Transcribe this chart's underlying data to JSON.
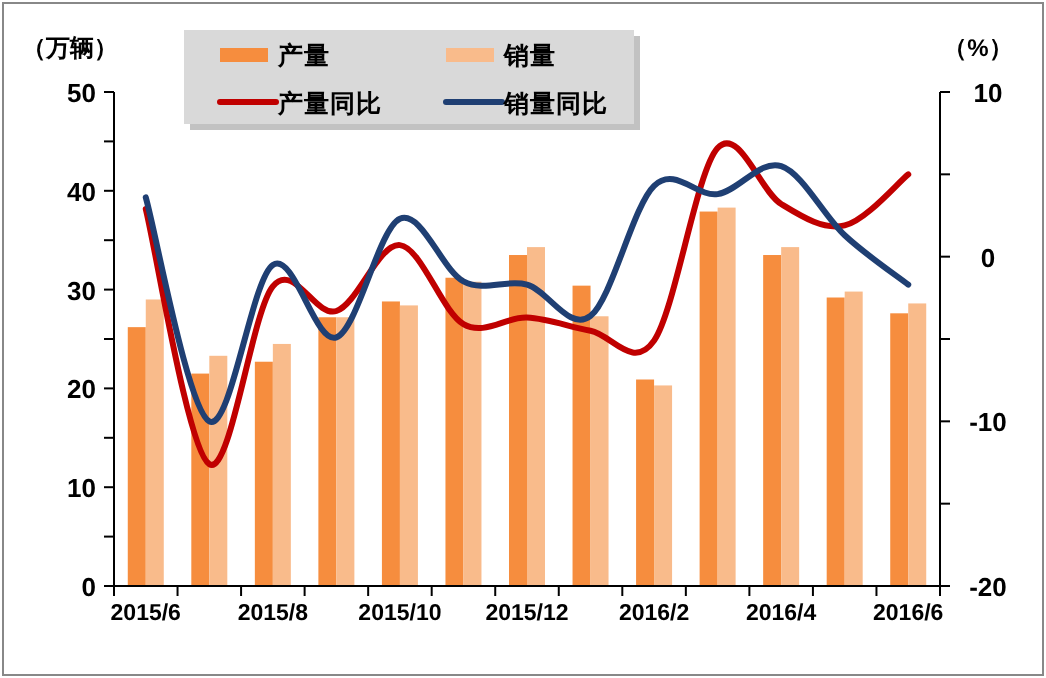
{
  "chart_data": {
    "type": "bar",
    "ylabel": "（万辆）",
    "y2label": "（%）",
    "categories": [
      "2015/6",
      null,
      "2015/8",
      null,
      "2015/10",
      null,
      "2015/12",
      null,
      "2016/2",
      null,
      "2016/4",
      null,
      "2016/6"
    ],
    "series": [
      {
        "name": "产量",
        "color": "#f68d3e",
        "values": [
          26.2,
          21.5,
          22.7,
          27.2,
          28.8,
          31.2,
          33.5,
          30.4,
          20.9,
          37.9,
          33.5,
          29.2,
          27.6
        ]
      },
      {
        "name": "销量",
        "color": "#f9bb8b",
        "values": [
          29.0,
          23.3,
          24.5,
          27.2,
          28.4,
          30.8,
          34.3,
          27.3,
          20.3,
          38.3,
          34.3,
          29.8,
          28.6
        ]
      },
      {
        "name": "产量同比",
        "type": "line",
        "axis": "y2",
        "color": "#c00000",
        "values": [
          2.9,
          -12.6,
          -1.8,
          -3.3,
          0.7,
          -4.1,
          -3.7,
          -4.5,
          -5.1,
          6.6,
          3.2,
          1.9,
          5.0
        ]
      },
      {
        "name": "销量同比",
        "type": "line",
        "axis": "y2",
        "color": "#1f3f73",
        "values": [
          3.6,
          -10.0,
          -0.5,
          -4.9,
          2.3,
          -1.5,
          -1.7,
          -3.6,
          4.3,
          3.8,
          5.5,
          1.3,
          -1.7
        ]
      }
    ],
    "ylim": [
      0,
      50
    ],
    "yticks": [
      0,
      {
        "value": 5,
        "label": null
      },
      10,
      {
        "value": 15,
        "label": null
      },
      20,
      {
        "value": 25,
        "label": null
      },
      30,
      {
        "value": 35,
        "label": null
      },
      40,
      {
        "value": 45,
        "label": null
      },
      50
    ],
    "y2lim": [
      -20,
      10
    ],
    "y2ticks": [
      -20,
      {
        "value": -15,
        "label": null
      },
      -10,
      {
        "value": -5,
        "label": null
      },
      0,
      {
        "value": 5,
        "label": null
      },
      10
    ],
    "legend": "top",
    "grid": false
  }
}
